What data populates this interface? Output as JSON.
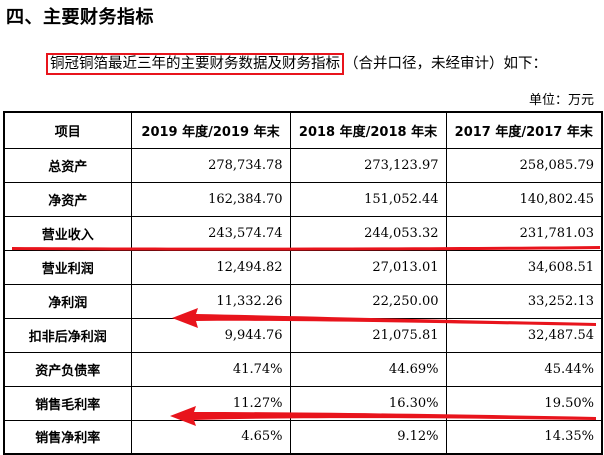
{
  "heading": "四、主要财务指标",
  "intro": {
    "highlighted": "铜冠铜箔最近三年的主要财务数据及财务指标",
    "rest": "（合并口径，未经审计）如下："
  },
  "unit": "单位：万元",
  "table": {
    "headers": [
      "项目",
      "2019 年度/2019 年末",
      "2018 年度/2018 年末",
      "2017 年度/2017 年末"
    ],
    "rows": [
      {
        "label": "总资产",
        "values": [
          "278,734.78",
          "273,123.97",
          "258,085.79"
        ]
      },
      {
        "label": "净资产",
        "values": [
          "162,384.70",
          "151,052.44",
          "140,802.45"
        ]
      },
      {
        "label": "营业收入",
        "values": [
          "243,574.74",
          "244,053.32",
          "231,781.03"
        ]
      },
      {
        "label": "营业利润",
        "values": [
          "12,494.82",
          "27,013.01",
          "34,608.51"
        ]
      },
      {
        "label": "净利润",
        "values": [
          "11,332.26",
          "22,250.00",
          "33,252.13"
        ]
      },
      {
        "label": "扣非后净利润",
        "values": [
          "9,944.76",
          "21,075.81",
          "32,487.54"
        ]
      },
      {
        "label": "资产负债率",
        "values": [
          "41.74%",
          "44.69%",
          "45.44%"
        ]
      },
      {
        "label": "销售毛利率",
        "values": [
          "11.27%",
          "16.30%",
          "19.50%"
        ]
      },
      {
        "label": "销售净利率",
        "values": [
          "4.65%",
          "9.12%",
          "14.35%"
        ]
      }
    ]
  },
  "annotation_color": "#e8141c"
}
